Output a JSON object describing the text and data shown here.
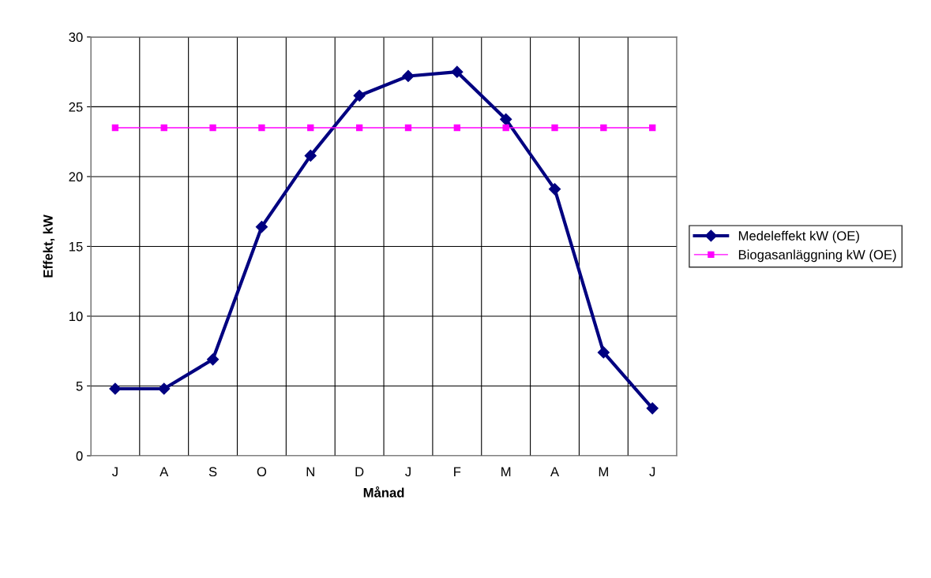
{
  "chart_data": {
    "type": "line",
    "xlabel": "Månad",
    "ylabel": "Effekt, kW",
    "categories": [
      "J",
      "A",
      "S",
      "O",
      "N",
      "D",
      "J",
      "F",
      "M",
      "A",
      "M",
      "J"
    ],
    "series": [
      {
        "name": "Medeleffekt kW (OE)",
        "color": "#000080",
        "marker": "diamond",
        "values": [
          4.8,
          4.8,
          6.9,
          16.4,
          21.5,
          25.8,
          27.2,
          27.5,
          24.1,
          19.1,
          7.4,
          3.4
        ]
      },
      {
        "name": "Biogasanläggning kW (OE)",
        "color": "#ff00ff",
        "marker": "square",
        "values": [
          23.5,
          23.5,
          23.5,
          23.5,
          23.5,
          23.5,
          23.5,
          23.5,
          23.5,
          23.5,
          23.5,
          23.5
        ]
      }
    ],
    "ylim": [
      0,
      30
    ],
    "yticks": [
      0,
      5,
      10,
      15,
      20,
      25,
      30
    ],
    "grid": true,
    "legend": "right"
  }
}
